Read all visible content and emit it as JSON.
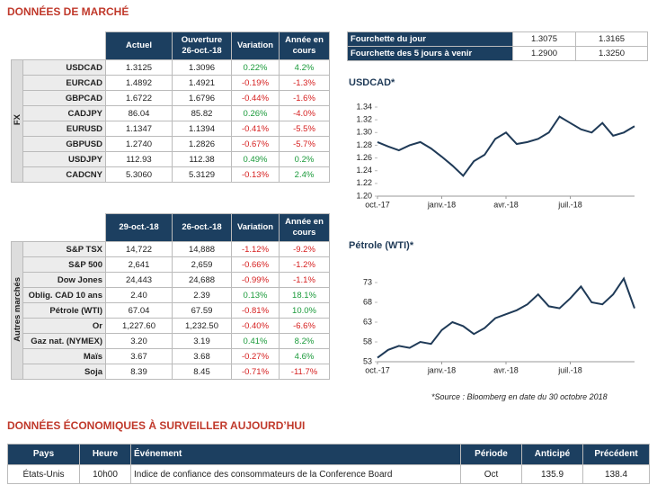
{
  "title": "DONNÉES DE MARCHÉ",
  "fx": {
    "side": "FX",
    "header": [
      "Actuel",
      "Ouverture 26-oct.-18",
      "Variation",
      "Année en cours"
    ],
    "rows": [
      [
        "USDCAD",
        "1.3125",
        "1.3096",
        "0.22%",
        "4.2%"
      ],
      [
        "EURCAD",
        "1.4892",
        "1.4921",
        "-0.19%",
        "-1.3%"
      ],
      [
        "GBPCAD",
        "1.6722",
        "1.6796",
        "-0.44%",
        "-1.6%"
      ],
      [
        "CADJPY",
        "86.04",
        "85.82",
        "0.26%",
        "-4.0%"
      ],
      [
        "EURUSD",
        "1.1347",
        "1.1394",
        "-0.41%",
        "-5.5%"
      ],
      [
        "GBPUSD",
        "1.2740",
        "1.2826",
        "-0.67%",
        "-5.7%"
      ],
      [
        "USDJPY",
        "112.93",
        "112.38",
        "0.49%",
        "0.2%"
      ],
      [
        "CADCNY",
        "5.3060",
        "5.3129",
        "-0.13%",
        "2.4%"
      ]
    ]
  },
  "range": {
    "rows": [
      [
        "Fourchette du jour",
        "1.3075",
        "1.3165"
      ],
      [
        "Fourchette des 5 jours à venir",
        "1.2900",
        "1.3250"
      ]
    ]
  },
  "markets": {
    "side": "Autres marchés",
    "header": [
      "29-oct.-18",
      "26-oct.-18",
      "Variation",
      "Année en cours"
    ],
    "rows": [
      [
        "S&P TSX",
        "14,722",
        "14,888",
        "-1.12%",
        "-9.2%"
      ],
      [
        "S&P 500",
        "2,641",
        "2,659",
        "-0.66%",
        "-1.2%"
      ],
      [
        "Dow Jones",
        "24,443",
        "24,688",
        "-0.99%",
        "-1.1%"
      ],
      [
        "Oblig. CAD 10 ans",
        "2.40",
        "2.39",
        "0.13%",
        "18.1%"
      ],
      [
        "Pétrole (WTI)",
        "67.04",
        "67.59",
        "-0.81%",
        "10.0%"
      ],
      [
        "Or",
        "1,227.60",
        "1,232.50",
        "-0.40%",
        "-6.6%"
      ],
      [
        "Gaz nat. (NYMEX)",
        "3.20",
        "3.19",
        "0.41%",
        "8.2%"
      ],
      [
        "Maïs",
        "3.67",
        "3.68",
        "-0.27%",
        "4.6%"
      ],
      [
        "Soja",
        "8.39",
        "8.45",
        "-0.71%",
        "-11.7%"
      ]
    ]
  },
  "source": "*Source : Bloomberg en date du  30 octobre 2018",
  "econ": {
    "title": "DONNÉES ÉCONOMIQUES À SURVEILLER AUJOURD’HUI",
    "header": [
      "Pays",
      "Heure",
      "Événement",
      "Période",
      "Anticipé",
      "Précédent"
    ],
    "rows": [
      [
        "États-Unis",
        "10h00",
        "Indice de confiance des consommateurs de la Conference Board",
        "Oct",
        "135.9",
        "138.4"
      ]
    ]
  },
  "chart_data": [
    {
      "type": "line",
      "title": "USDCAD*",
      "categories": [
        "oct.-17",
        null,
        null,
        null,
        null,
        null,
        "janv.-18",
        null,
        null,
        null,
        null,
        null,
        "avr.-18",
        null,
        null,
        null,
        null,
        null,
        "juil.-18",
        null,
        null,
        null,
        null,
        null,
        null
      ],
      "series": [
        {
          "color": "#1f3a57",
          "values": [
            1.285,
            1.278,
            1.272,
            1.28,
            1.285,
            1.275,
            1.262,
            1.248,
            1.232,
            1.255,
            1.265,
            1.29,
            1.3,
            1.282,
            1.285,
            1.29,
            1.3,
            1.325,
            1.315,
            1.305,
            1.3,
            1.315,
            1.295,
            1.3,
            1.31
          ]
        }
      ],
      "ylim": [
        1.2,
        1.34
      ],
      "yticks": [
        {
          "value": 1.2,
          "label": "1.20"
        },
        1.22,
        1.24,
        1.26,
        1.28,
        {
          "value": 1.3,
          "label": "1.30"
        },
        1.32,
        1.34
      ]
    },
    {
      "type": "line",
      "title": "Pétrole (WTI)*",
      "categories": [
        "oct.-17",
        null,
        null,
        null,
        null,
        null,
        "janv.-18",
        null,
        null,
        null,
        null,
        null,
        "avr.-18",
        null,
        null,
        null,
        null,
        null,
        "juil.-18",
        null,
        null,
        null,
        null,
        null,
        null
      ],
      "series": [
        {
          "color": "#1f3a57",
          "values": [
            54,
            56,
            57,
            56.5,
            58,
            57.5,
            61,
            63,
            62,
            60,
            61.5,
            64,
            65,
            66,
            67.5,
            70,
            67,
            66.5,
            69,
            72,
            68,
            67.5,
            70,
            74,
            66.5
          ]
        }
      ],
      "ylim": [
        53,
        78
      ],
      "yticks": [
        53,
        58,
        63,
        68,
        73
      ]
    }
  ]
}
